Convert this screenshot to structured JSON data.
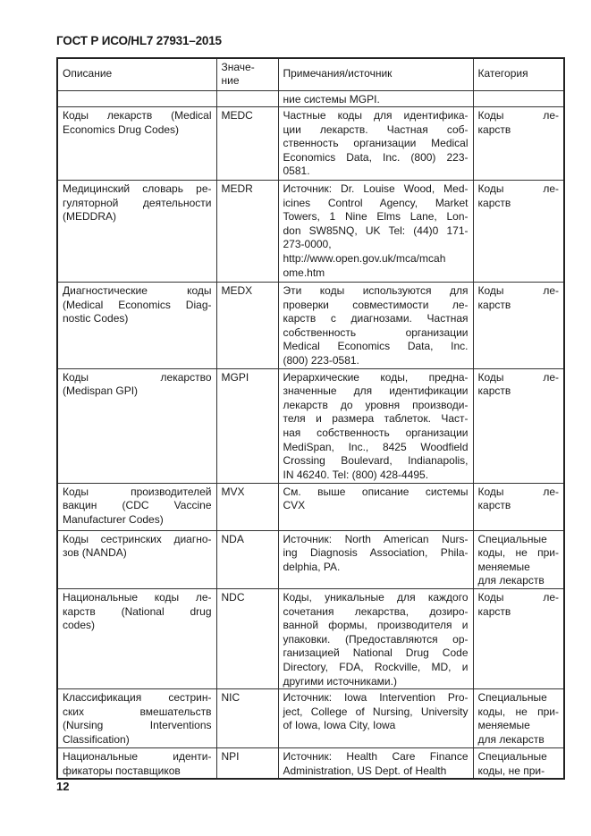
{
  "document": {
    "title": "ГОСТ Р ИСО/HL7 27931–2015",
    "page_number": "12"
  },
  "table": {
    "headers": [
      [
        "Описание"
      ],
      [
        "Значе-",
        "ние"
      ],
      [
        "Примечания/источник"
      ],
      [
        "Категория"
      ]
    ],
    "rows": [
      {
        "h": 18,
        "cells": [
          [],
          [],
          [
            "ние системы MGPI."
          ],
          []
        ]
      },
      {
        "h": 82,
        "cells": [
          [
            "Коды лекарств (Medical",
            "Economics Drug Codes)"
          ],
          [
            "MEDC"
          ],
          [
            "Частные коды для идентифика-",
            "ции лекарств. Частная соб-",
            "ственность организации Medical",
            "Economics Data, Inc. (800) 223-",
            "0581."
          ],
          [
            "Коды ле-",
            "карств"
          ]
        ]
      },
      {
        "h": 114,
        "cells": [
          [
            "Медицинский словарь ре-",
            "гуляторной деятельности",
            "(MEDDRA)"
          ],
          [
            "MEDR"
          ],
          [
            "Источник: Dr. Louise Wood, Med-",
            "icines Control Agency, Market",
            "Towers, 1 Nine Elms Lane, Lon-",
            "don SW85NQ, UK Tel: (44)0 171-",
            "273-0000,",
            "http://www.open.gov.uk/mca/mcah",
            "ome.htm"
          ],
          [
            "Коды ле-",
            "карств"
          ]
        ]
      },
      {
        "h": 95,
        "cells": [
          [
            "Диагностические коды",
            "(Medical Economics Diag-",
            "nostic Codes)"
          ],
          [
            "MEDX"
          ],
          [
            "Эти коды используются для",
            "проверки совместимости ле-",
            "карств с диагнозами. Частная",
            "собственность организации",
            "Medical Economics Data, Inc.",
            "(800) 223-0581."
          ],
          [
            "Коды ле-",
            "карств"
          ]
        ]
      },
      {
        "h": 128,
        "cells": [
          [
            "Коды лекарство",
            "(Medispan GPI)"
          ],
          [
            "MGPI"
          ],
          [
            "Иерархические коды, предна-",
            "значенные для идентификации",
            "лекарств до уровня производи-",
            "теля и размера таблеток. Част-",
            "ная собственность организации",
            "MediSpan, Inc., 8425 Woodfield",
            "Crossing Boulevard, Indianapolis,",
            "IN 46240. Tel: (800) 428-4495."
          ],
          [
            "Коды ле-",
            "карств"
          ]
        ]
      },
      {
        "h": 53,
        "cells": [
          [
            "Коды производителей",
            "вакцин (CDC Vaccine",
            "Manufacturer Codes)"
          ],
          [
            "MVX"
          ],
          [
            "См. выше описание системы",
            "CVX"
          ],
          [
            "Коды ле-",
            "карств"
          ]
        ]
      },
      {
        "h": 65,
        "cells": [
          [
            "Коды сестринских диагно-",
            "зов (NANDA)"
          ],
          [
            "NDA"
          ],
          [
            "Источник: North American Nurs-",
            "ing Diagnosis Association, Phila-",
            "delphia, PA."
          ],
          [
            "Специальные",
            "коды, не при-",
            "меняемые",
            "для лекарств"
          ]
        ]
      },
      {
        "h": 112,
        "cells": [
          [
            "Национальные коды ле-",
            "карств (National drug",
            "codes)"
          ],
          [
            "NDC"
          ],
          [
            "Коды, уникальные для каждого",
            "сочетания лекарства, дозиро-",
            "ванной формы, производителя и",
            "упаковки. (Предоставляются ор-",
            "ганизацией National Drug Code",
            "Directory, FDA, Rockville, MD, и",
            "другими источниками.)"
          ],
          [
            "Коды ле-",
            "карств"
          ]
        ]
      },
      {
        "h": 66,
        "cells": [
          [
            "Классификация сестрин-",
            "ских вмешательств",
            "(Nursing Interventions",
            "Classification)"
          ],
          [
            "NIC"
          ],
          [
            "Источник: Iowa Intervention Pro-",
            "ject, College of Nursing, University",
            "of Iowa, Iowa City, Iowa"
          ],
          [
            "Специальные",
            "коды, не при-",
            "меняемые",
            "для лекарств"
          ]
        ]
      },
      {
        "h": 33,
        "cells": [
          [
            "Национальные иденти-",
            "фикаторы поставщиков"
          ],
          [
            "NPI"
          ],
          [
            "Источник: Health Care Finance",
            "Administration, US Dept. of Health"
          ],
          [
            "Специальные",
            "коды, не при-"
          ]
        ]
      }
    ]
  }
}
